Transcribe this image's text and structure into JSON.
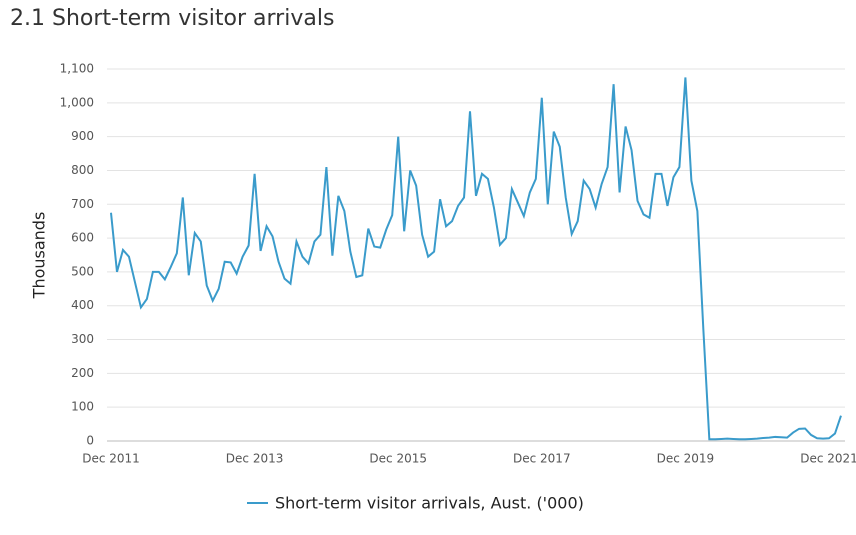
{
  "chart_data": {
    "type": "line",
    "title": "2.1 Short-term visitor arrivals",
    "y_label": "Thousands",
    "categories": [
      "Dec 2011",
      null,
      null,
      null,
      null,
      null,
      null,
      null,
      null,
      null,
      null,
      null,
      null,
      null,
      null,
      null,
      null,
      null,
      null,
      null,
      null,
      null,
      null,
      null,
      "Dec 2013",
      null,
      null,
      null,
      null,
      null,
      null,
      null,
      null,
      null,
      null,
      null,
      null,
      null,
      null,
      null,
      null,
      null,
      null,
      null,
      null,
      null,
      null,
      null,
      "Dec 2015",
      null,
      null,
      null,
      null,
      null,
      null,
      null,
      null,
      null,
      null,
      null,
      null,
      null,
      null,
      null,
      null,
      null,
      null,
      null,
      null,
      null,
      null,
      null,
      "Dec 2017",
      null,
      null,
      null,
      null,
      null,
      null,
      null,
      null,
      null,
      null,
      null,
      null,
      null,
      null,
      null,
      null,
      null,
      null,
      null,
      null,
      null,
      null,
      null,
      "Dec 2019",
      null,
      null,
      null,
      null,
      null,
      null,
      null,
      null,
      null,
      null,
      null,
      null,
      null,
      null,
      null,
      null,
      null,
      null,
      null,
      null,
      null,
      null,
      null,
      "Dec 2021",
      null,
      null
    ],
    "series": [
      {
        "name": "Short-term visitor arrivals, Aust. ('000)",
        "color": "#3a9bcb",
        "values": [
          675,
          500,
          565,
          545,
          470,
          395,
          420,
          500,
          500,
          478,
          515,
          555,
          720,
          490,
          615,
          590,
          460,
          415,
          450,
          530,
          528,
          495,
          545,
          578,
          790,
          562,
          635,
          605,
          530,
          480,
          465,
          590,
          545,
          525,
          590,
          610,
          810,
          548,
          725,
          680,
          560,
          485,
          490,
          628,
          575,
          572,
          625,
          668,
          900,
          620,
          800,
          755,
          610,
          545,
          560,
          715,
          635,
          650,
          695,
          720,
          975,
          725,
          790,
          775,
          690,
          580,
          600,
          745,
          705,
          665,
          735,
          775,
          1015,
          700,
          915,
          870,
          720,
          612,
          650,
          770,
          745,
          690,
          760,
          810,
          1055,
          735,
          930,
          860,
          710,
          670,
          660,
          790,
          790,
          695,
          780,
          810,
          1075,
          770,
          680,
          330,
          5,
          5,
          6,
          7,
          6,
          5,
          5,
          6,
          7,
          9,
          10,
          12,
          11,
          10,
          25,
          36,
          37,
          18,
          8,
          7,
          8,
          22,
          75
        ]
      }
    ],
    "ylim": [
      0,
      1100
    ],
    "yticks": [
      0,
      100,
      200,
      300,
      400,
      500,
      600,
      700,
      800,
      900,
      {
        "value": 1000,
        "label": "1,000"
      },
      {
        "value": 1100,
        "label": "1,100"
      }
    ],
    "grid": true,
    "legend": "bottom"
  }
}
